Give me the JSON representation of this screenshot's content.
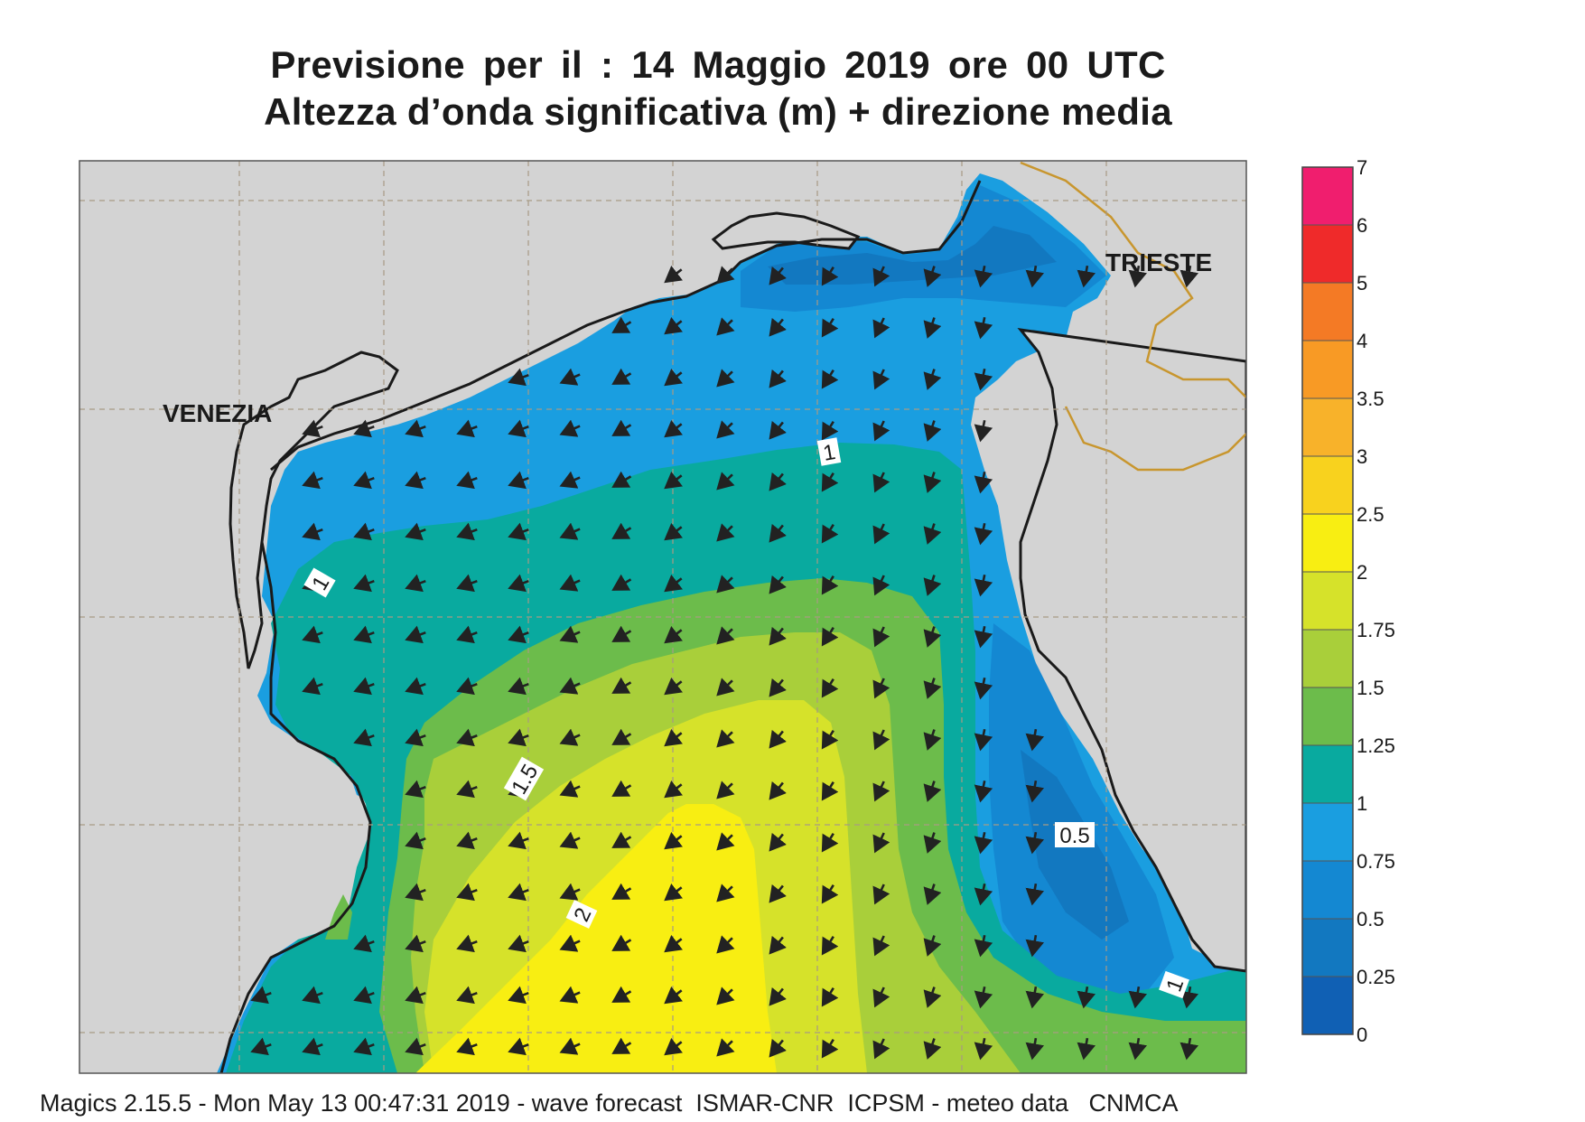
{
  "header": {
    "line1": "Previsione per il  :  14   Maggio  2019   ore 00 UTC",
    "line2": "Altezza d’onda significativa (m) + direzione media"
  },
  "map": {
    "region": "Northern Adriatic Sea",
    "place_labels": [
      {
        "id": "venezia",
        "text": "VENEZIA"
      },
      {
        "id": "trieste",
        "text": "TRIESTE"
      }
    ],
    "contour_labels": [
      {
        "id": "c1-north",
        "text": "1"
      },
      {
        "id": "c1-west",
        "text": "1"
      },
      {
        "id": "c15",
        "text": "1.5"
      },
      {
        "id": "c2",
        "text": "2"
      },
      {
        "id": "c05",
        "text": "0.5"
      },
      {
        "id": "c1-se",
        "text": "1"
      }
    ],
    "colors": {
      "land": "#d3d3d3",
      "coastline": "#1a1a1a",
      "border": "#c8962e",
      "grid": "#a89a84",
      "arrow": "#222222"
    },
    "wave_direction": "mean wave direction arrows pointing toward south-west and south"
  },
  "colorbar": {
    "ticks": [
      "7",
      "6",
      "5",
      "4",
      "3.5",
      "3",
      "2.5",
      "2",
      "1.75",
      "1.5",
      "1.25",
      "1",
      "0.75",
      "0.5",
      "0.25",
      "0"
    ],
    "bands": [
      {
        "range": "6-7",
        "color": "#f01e6e"
      },
      {
        "range": "5-6",
        "color": "#ef2a2a"
      },
      {
        "range": "4-5",
        "color": "#f47a25"
      },
      {
        "range": "3.5-4",
        "color": "#f89a25"
      },
      {
        "range": "3-3.5",
        "color": "#f8b22a"
      },
      {
        "range": "2.5-3",
        "color": "#f8d21e"
      },
      {
        "range": "2-2.5",
        "color": "#f8ee12"
      },
      {
        "range": "1.75-2",
        "color": "#d6e22a"
      },
      {
        "range": "1.5-1.75",
        "color": "#a9cf3a"
      },
      {
        "range": "1.25-1.5",
        "color": "#6cbc4b"
      },
      {
        "range": "1-1.25",
        "color": "#09aa9f"
      },
      {
        "range": "0.75-1",
        "color": "#1a9ee0"
      },
      {
        "range": "0.5-0.75",
        "color": "#1488d2"
      },
      {
        "range": "0.25-0.5",
        "color": "#1278c0"
      },
      {
        "range": "0-0.25",
        "color": "#1060b4"
      }
    ]
  },
  "footer": {
    "text": "Magics 2.15.5 - Mon May 13 00:47:31 2019 - wave forecast  ISMAR-CNR  ICPSM - meteo data   CNMCA"
  }
}
